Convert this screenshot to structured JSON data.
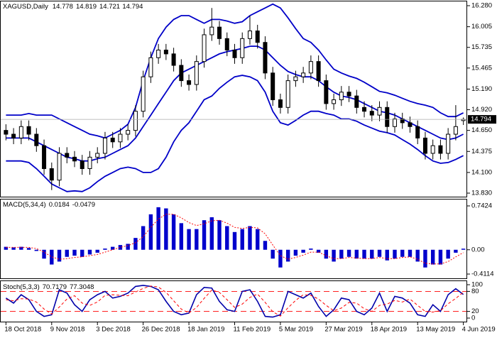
{
  "chart_data": [
    {
      "type": "candlestick",
      "title": "XAGUSD,Daily",
      "color": "#000000",
      "open": [
        14.65,
        14.6,
        14.55,
        14.7,
        14.6,
        14.45,
        14.15,
        14.0,
        14.35,
        14.3,
        14.25,
        14.15,
        14.3,
        14.35,
        14.55,
        14.5,
        14.6,
        14.65,
        14.9,
        15.35,
        15.6,
        15.7,
        15.65,
        15.5,
        15.3,
        15.25,
        15.55,
        15.9,
        16.0,
        15.85,
        15.7,
        15.6,
        15.85,
        15.95,
        15.8,
        15.4,
        15.05,
        14.95,
        15.3,
        15.35,
        15.4,
        15.55,
        15.3,
        15.0,
        15.05,
        15.15,
        15.1,
        14.95,
        14.9,
        14.85,
        14.95,
        14.7,
        14.8,
        14.75,
        14.7,
        14.55,
        14.35,
        14.45,
        14.35,
        14.6,
        14.778
      ],
      "high": [
        14.73,
        14.68,
        14.78,
        14.78,
        14.68,
        14.53,
        14.23,
        14.43,
        14.43,
        14.38,
        14.33,
        14.38,
        14.43,
        14.63,
        14.63,
        14.68,
        14.73,
        14.98,
        15.43,
        15.68,
        15.78,
        15.78,
        15.73,
        15.58,
        15.38,
        15.63,
        15.98,
        16.25,
        16.08,
        15.93,
        15.78,
        15.93,
        16.15,
        16.03,
        15.88,
        15.48,
        15.13,
        15.38,
        15.43,
        15.48,
        15.63,
        15.63,
        15.38,
        15.13,
        15.23,
        15.23,
        15.18,
        15.03,
        14.98,
        15.03,
        15.03,
        14.88,
        14.88,
        14.83,
        14.78,
        14.63,
        14.53,
        14.53,
        14.68,
        14.98,
        14.819
      ],
      "low": [
        14.52,
        14.47,
        14.47,
        14.52,
        14.37,
        14.07,
        13.87,
        13.92,
        14.22,
        14.17,
        14.07,
        14.07,
        14.22,
        14.27,
        14.42,
        14.42,
        14.52,
        14.57,
        14.82,
        15.27,
        15.52,
        15.57,
        15.42,
        15.22,
        15.17,
        15.17,
        15.47,
        15.82,
        15.77,
        15.62,
        15.52,
        15.52,
        15.77,
        15.72,
        15.32,
        14.97,
        14.87,
        14.87,
        15.22,
        15.27,
        15.32,
        15.22,
        14.92,
        14.92,
        14.97,
        15.02,
        14.87,
        14.82,
        14.77,
        14.77,
        14.62,
        14.62,
        14.67,
        14.62,
        14.47,
        14.27,
        14.27,
        14.27,
        14.27,
        14.52,
        14.721
      ],
      "close": [
        14.6,
        14.55,
        14.7,
        14.6,
        14.45,
        14.15,
        14.0,
        14.35,
        14.3,
        14.25,
        14.15,
        14.3,
        14.35,
        14.55,
        14.5,
        14.6,
        14.65,
        14.9,
        15.35,
        15.6,
        15.7,
        15.65,
        15.5,
        15.3,
        15.25,
        15.55,
        15.9,
        16.0,
        15.85,
        15.7,
        15.6,
        15.85,
        15.95,
        15.8,
        15.4,
        15.05,
        14.95,
        15.3,
        15.35,
        15.4,
        15.55,
        15.3,
        15.0,
        15.05,
        15.15,
        15.1,
        14.95,
        14.9,
        14.85,
        14.95,
        14.7,
        14.8,
        14.75,
        14.7,
        14.55,
        14.35,
        14.45,
        14.35,
        14.6,
        14.7,
        14.794
      ],
      "series": [
        {
          "color": "#0000c8",
          "values": [
            14.85,
            14.85,
            14.85,
            14.87,
            14.85,
            14.85,
            14.85,
            14.8,
            14.75,
            14.7,
            14.65,
            14.6,
            14.58,
            14.55,
            14.6,
            14.65,
            14.73,
            14.95,
            15.3,
            15.6,
            15.85,
            16.0,
            16.1,
            16.15,
            16.15,
            16.1,
            16.05,
            16.1,
            16.1,
            16.08,
            16.05,
            16.07,
            16.15,
            16.2,
            16.25,
            16.3,
            16.25,
            16.12,
            15.98,
            15.85,
            15.8,
            15.7,
            15.57,
            15.45,
            15.4,
            15.36,
            15.33,
            15.28,
            15.22,
            15.16,
            15.14,
            15.11,
            15.07,
            15.03,
            15.0,
            14.98,
            14.95,
            14.88,
            14.83,
            14.83,
            14.88
          ]
        },
        {
          "color": "#0000c8",
          "values": [
            14.55,
            14.55,
            14.55,
            14.55,
            14.5,
            14.45,
            14.4,
            14.35,
            14.3,
            14.28,
            14.25,
            14.25,
            14.28,
            14.3,
            14.35,
            14.4,
            14.45,
            14.55,
            14.7,
            14.85,
            15.0,
            15.15,
            15.3,
            15.4,
            15.45,
            15.5,
            15.55,
            15.6,
            15.65,
            15.68,
            15.7,
            15.72,
            15.75,
            15.75,
            15.7,
            15.6,
            15.5,
            15.42,
            15.38,
            15.35,
            15.35,
            15.3,
            15.22,
            15.15,
            15.1,
            15.08,
            15.05,
            15.0,
            14.95,
            14.9,
            14.88,
            14.85,
            14.8,
            14.75,
            14.7,
            14.65,
            14.6,
            14.55,
            14.53,
            14.55,
            14.6
          ]
        },
        {
          "color": "#0000c8",
          "values": [
            14.25,
            14.25,
            14.25,
            14.23,
            14.15,
            14.05,
            13.95,
            13.9,
            13.85,
            13.86,
            13.85,
            13.9,
            13.98,
            14.05,
            14.1,
            14.15,
            14.17,
            14.15,
            14.1,
            14.1,
            14.15,
            14.3,
            14.5,
            14.65,
            14.75,
            14.9,
            15.05,
            15.1,
            15.2,
            15.28,
            15.35,
            15.37,
            15.35,
            15.3,
            15.15,
            14.9,
            14.75,
            14.72,
            14.78,
            14.85,
            14.9,
            14.9,
            14.87,
            14.85,
            14.8,
            14.8,
            14.77,
            14.72,
            14.68,
            14.64,
            14.62,
            14.59,
            14.53,
            14.47,
            14.4,
            14.32,
            14.25,
            14.22,
            14.23,
            14.27,
            14.32
          ]
        }
      ],
      "ylim": [
        13.83,
        16.28
      ],
      "yticks": [
        {
          "value": 16.28,
          "label": "16.280"
        },
        16.005,
        15.735,
        15.465,
        {
          "value": 15.19,
          "label": "15.190"
        },
        {
          "value": 14.92,
          "label": "14.920"
        },
        {
          "value": 14.65,
          "label": "14.650"
        },
        14.375,
        {
          "value": 14.1,
          "label": "14.100"
        },
        {
          "value": 13.83,
          "label": "13.830"
        }
      ]
    },
    {
      "type": "bar",
      "title": "MACD(5,34,4)",
      "color": "#0000cc",
      "signal_color": "#ff0000",
      "values": [
        0.05,
        0.04,
        0.05,
        0.03,
        -0.02,
        -0.15,
        -0.25,
        -0.2,
        -0.12,
        -0.1,
        -0.12,
        -0.08,
        -0.05,
        0.02,
        0.05,
        0.08,
        0.1,
        0.2,
        0.4,
        0.6,
        0.72,
        0.7,
        0.6,
        0.45,
        0.35,
        0.35,
        0.5,
        0.55,
        0.5,
        0.4,
        0.3,
        0.35,
        0.4,
        0.35,
        0.15,
        -0.15,
        -0.3,
        -0.2,
        -0.1,
        -0.05,
        0.02,
        -0.05,
        -0.15,
        -0.2,
        -0.15,
        -0.12,
        -0.15,
        -0.15,
        -0.15,
        -0.12,
        -0.18,
        -0.15,
        -0.12,
        -0.12,
        -0.2,
        -0.3,
        -0.25,
        -0.25,
        -0.15,
        -0.05,
        0.0184
      ],
      "signal": [
        0.04,
        0.04,
        0.04,
        0.04,
        0.02,
        -0.04,
        -0.12,
        -0.16,
        -0.15,
        -0.13,
        -0.12,
        -0.1,
        -0.08,
        -0.04,
        0.0,
        0.04,
        0.07,
        0.12,
        0.22,
        0.38,
        0.52,
        0.6,
        0.6,
        0.54,
        0.46,
        0.41,
        0.44,
        0.49,
        0.5,
        0.45,
        0.38,
        0.36,
        0.38,
        0.37,
        0.27,
        0.08,
        -0.1,
        -0.16,
        -0.13,
        -0.09,
        -0.04,
        -0.04,
        -0.1,
        -0.15,
        -0.15,
        -0.13,
        -0.14,
        -0.15,
        -0.15,
        -0.13,
        -0.15,
        -0.15,
        -0.13,
        -0.12,
        -0.16,
        -0.23,
        -0.24,
        -0.24,
        -0.2,
        -0.12,
        -0.0479
      ],
      "ylim": [
        -0.4114,
        0.7424
      ],
      "yticks": [
        0.7424,
        {
          "value": 0,
          "label": "0.00"
        },
        -0.4114
      ]
    },
    {
      "type": "line",
      "title": "Stoch(5,3,3)",
      "series": [
        {
          "color": "#0000aa",
          "values": [
            60,
            45,
            70,
            55,
            20,
            5,
            10,
            85,
            75,
            40,
            20,
            55,
            70,
            80,
            60,
            65,
            75,
            95,
            98,
            95,
            85,
            50,
            20,
            10,
            15,
            70,
            92,
            90,
            50,
            25,
            20,
            80,
            85,
            50,
            5,
            3,
            10,
            80,
            70,
            60,
            75,
            35,
            5,
            25,
            60,
            55,
            20,
            10,
            30,
            75,
            20,
            65,
            60,
            45,
            10,
            5,
            40,
            20,
            70,
            88,
            70.7179
          ]
        },
        {
          "color": "#ff0000",
          "values": [
            55,
            52,
            58,
            57,
            48,
            27,
            12,
            33,
            57,
            67,
            45,
            38,
            48,
            68,
            70,
            68,
            67,
            78,
            89,
            96,
            93,
            77,
            52,
            27,
            15,
            32,
            59,
            84,
            77,
            55,
            32,
            42,
            62,
            72,
            47,
            19,
            6,
            31,
            53,
            70,
            68,
            57,
            38,
            22,
            30,
            47,
            45,
            28,
            20,
            38,
            42,
            53,
            48,
            57,
            38,
            20,
            18,
            22,
            43,
            59,
            77.3048
          ]
        }
      ],
      "levels": [
        80,
        20
      ],
      "level_color": "#ff0000",
      "ylim": [
        0,
        100
      ],
      "yticks": [
        100,
        80,
        20,
        0
      ],
      "categories": [
        "18 Oct 2018",
        null,
        null,
        null,
        null,
        null,
        "9 Nov 2018",
        null,
        null,
        null,
        null,
        null,
        "3 Dec 2018",
        null,
        null,
        null,
        null,
        null,
        "26 Dec 2018",
        null,
        null,
        null,
        null,
        null,
        "18 Jan 2019",
        null,
        null,
        null,
        null,
        null,
        "11 Feb 2019",
        null,
        null,
        null,
        null,
        null,
        "5 Mar 2019",
        null,
        null,
        null,
        null,
        null,
        "27 Mar 2019",
        null,
        null,
        null,
        null,
        null,
        "18 Apr 2019",
        null,
        null,
        null,
        null,
        null,
        "13 May 2019",
        null,
        null,
        null,
        null,
        null,
        "4 Jun 2019"
      ]
    }
  ]
}
